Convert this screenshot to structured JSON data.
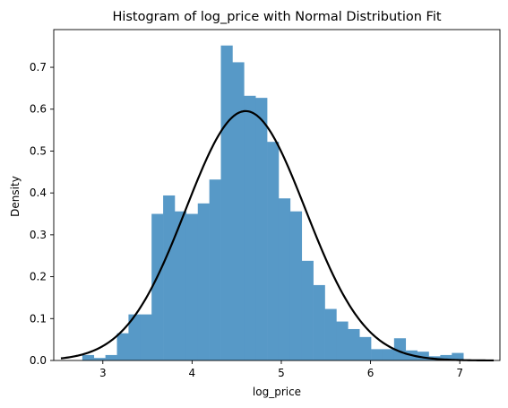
{
  "chart_data": {
    "type": "bar",
    "title": "Histogram of log_price with Normal Distribution Fit",
    "xlabel": "log_price",
    "ylabel": "Density",
    "xlim": [
      2.45,
      7.45
    ],
    "ylim": [
      0,
      0.79
    ],
    "xticks": [
      3,
      4,
      5,
      6,
      7
    ],
    "xtick_labels": [
      "3",
      "4",
      "5",
      "6",
      "7"
    ],
    "yticks": [
      0.0,
      0.1,
      0.2,
      0.3,
      0.4,
      0.5,
      0.6,
      0.7
    ],
    "ytick_labels": [
      "0.0",
      "0.1",
      "0.2",
      "0.3",
      "0.4",
      "0.5",
      "0.6",
      "0.7"
    ],
    "grid": false,
    "series": [
      {
        "kind": "histogram",
        "color": "#5799c7",
        "bin_width": 0.1294,
        "bin_edges_start": 2.77,
        "density": [
          0.013,
          0.006,
          0.013,
          0.065,
          0.11,
          0.11,
          0.35,
          0.394,
          0.356,
          0.35,
          0.375,
          0.432,
          0.752,
          0.712,
          0.632,
          0.627,
          0.522,
          0.387,
          0.356,
          0.238,
          0.18,
          0.123,
          0.093,
          0.075,
          0.056,
          0.027,
          0.027,
          0.053,
          0.024,
          0.021,
          0.01,
          0.013,
          0.018
        ]
      },
      {
        "kind": "normal_fit",
        "color": "#000000",
        "mu": 4.6,
        "sigma": 0.67,
        "x_range": [
          2.53,
          7.38
        ]
      }
    ]
  }
}
